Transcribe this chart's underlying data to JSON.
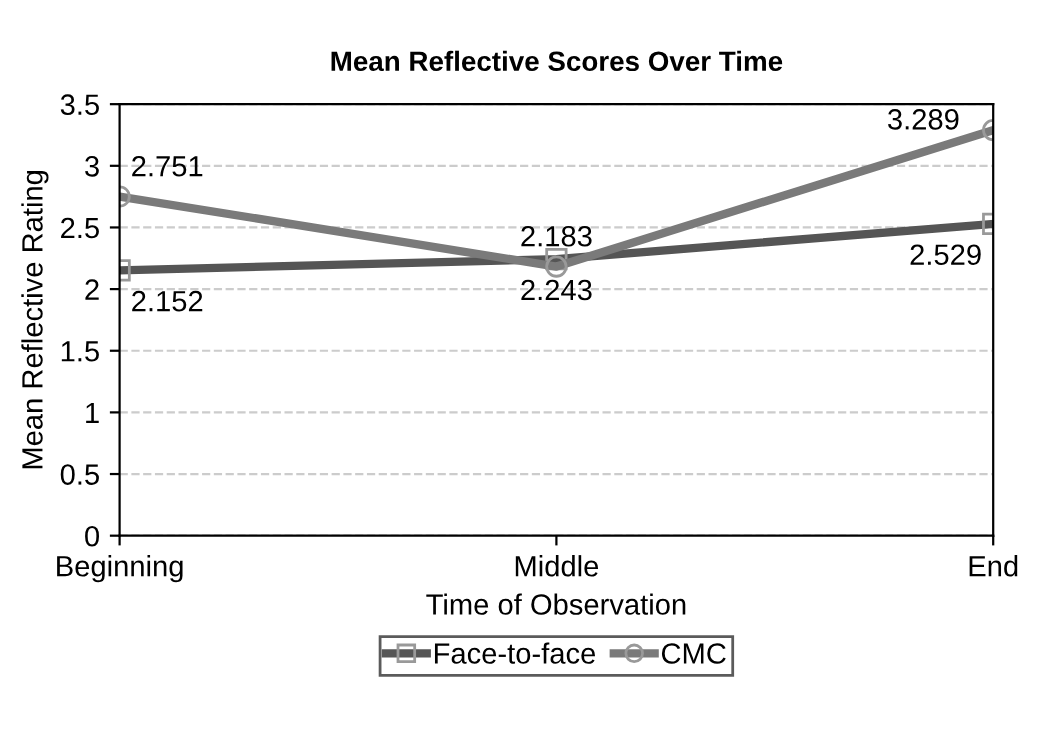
{
  "chart_data": {
    "type": "line",
    "title": "Mean Reflective Scores Over Time",
    "xlabel": "Time of Observation",
    "ylabel": "Mean Reflective Rating",
    "categories": [
      "Beginning",
      "Middle",
      "End"
    ],
    "series": [
      {
        "name": "Face-to-face",
        "color": "#555555",
        "values": [
          2.152,
          2.243,
          2.529
        ],
        "marker": "square"
      },
      {
        "name": "CMC",
        "color": "#7a7a7a",
        "values": [
          2.751,
          2.183,
          3.289
        ],
        "marker": "circle"
      }
    ],
    "ylim": [
      0,
      3.5
    ],
    "yticks": [
      0,
      0.5,
      1,
      1.5,
      2,
      2.5,
      3,
      3.5
    ],
    "grid": "y",
    "legend": "bottom",
    "data_labels": true,
    "line_style": "solid"
  }
}
